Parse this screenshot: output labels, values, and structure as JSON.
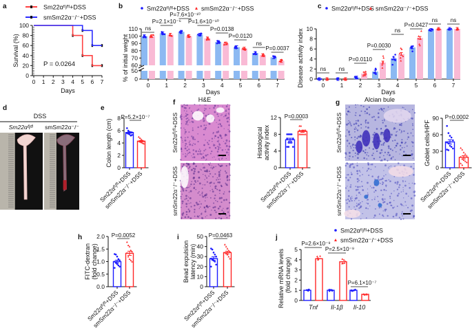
{
  "figure": {
    "panel_letters": [
      "a",
      "b",
      "c",
      "d",
      "e",
      "f",
      "g",
      "h",
      "i",
      "j"
    ],
    "d": {
      "title": "DSS",
      "labels": [
        "Sm22αᶠˡ/ᶠˡ",
        "smSm22α⁻/⁻"
      ]
    },
    "f": {
      "title": "H&E",
      "row_labels": [
        "Sm22αᶠˡ/ᶠˡ+DSS",
        "smSm22α⁻/⁻+DSS"
      ]
    },
    "g": {
      "title": "Alcian bule",
      "row_labels": [
        "Sm22αᶠˡ/ᶠˡ+DSS",
        "smSm22α⁻/⁻+DSS"
      ]
    }
  },
  "colors": {
    "blue": "#1c1cff",
    "red": "#ff2626",
    "light_blue": "#8cb9f2",
    "pink": "#f9bad5",
    "survival_red": "#ff4040",
    "survival_blue": "#2b2bff"
  },
  "chart_data": [
    {
      "panel": "a",
      "type": "line",
      "step": true,
      "xlabel": "Days",
      "ylabel": "Survival (%)",
      "xlim": [
        0,
        7
      ],
      "ylim": [
        0,
        100
      ],
      "xticks": [
        "0",
        "1",
        "2",
        "3",
        "4",
        "5",
        "6",
        "7"
      ],
      "yticks": [
        "0",
        "20",
        "40",
        "60",
        "80",
        "100"
      ],
      "legend": "top",
      "series": [
        {
          "name": "Sm22αᶠˡ/ᶠˡ+DSS",
          "color": "red",
          "x": [
            0,
            4,
            5,
            6,
            7
          ],
          "y": [
            100,
            80,
            40,
            20,
            20
          ]
        },
        {
          "name": "smSm22α⁻/⁻+DSS",
          "color": "blue",
          "x": [
            0,
            5,
            6,
            7
          ],
          "y": [
            100,
            90,
            60,
            60
          ]
        }
      ],
      "annotation": "P = 0.0264"
    },
    {
      "panel": "b",
      "type": "bar",
      "xlabel": "Days",
      "ylabel": "% of initial weight",
      "categories": [
        "0",
        "1",
        "2",
        "3",
        "4",
        "5",
        "6",
        "7"
      ],
      "yticks": [
        "0",
        "50",
        "60",
        "70",
        "80",
        "90",
        "100",
        "110"
      ],
      "ylim": [
        0,
        110
      ],
      "axis_break": [
        50,
        60
      ],
      "legend": "top",
      "series": [
        {
          "name": "Sm22αᶠˡ/ᶠˡ+DSS",
          "values": [
            100,
            104,
            106,
            102,
            92,
            85,
            77,
            71
          ]
        },
        {
          "name": "smSm22α⁻/⁻+DSS",
          "values": [
            100,
            102,
            100,
            97,
            90,
            83,
            74,
            66
          ]
        }
      ],
      "annotations": [
        "ns",
        "P=2.1×10⁻⁶",
        "P=7.6×10⁻¹⁰",
        "P=1.6×10⁻¹⁰",
        "P=0.0138",
        "P=0.0120",
        "ns",
        "P=0.0037"
      ]
    },
    {
      "panel": "c",
      "type": "bar",
      "xlabel": "Days",
      "ylabel": "Disease activity index",
      "categories": [
        "0",
        "1",
        "2",
        "3",
        "4",
        "5",
        "6",
        "7"
      ],
      "yticks": [
        "0",
        "2",
        "4",
        "6",
        "8",
        "10"
      ],
      "ylim": [
        0,
        10
      ],
      "legend": "top",
      "series": [
        {
          "name": "Sm22αᶠˡ/ᶠˡ+DSS",
          "values": [
            0,
            0,
            0.3,
            1.5,
            4.1,
            6.3,
            9.8,
            10
          ]
        },
        {
          "name": "smSm22α⁻/⁻+DSS",
          "values": [
            0,
            0,
            1.1,
            3.3,
            5.0,
            8.2,
            10,
            10
          ]
        }
      ],
      "annotations": [
        "ns",
        "ns",
        "P=0.0110",
        "P=0.0030",
        "ns",
        "P=0.0427",
        "ns",
        "ns"
      ]
    },
    {
      "panel": "e",
      "type": "bar",
      "ylabel": [
        "Colon length (cm)"
      ],
      "categories": [
        "Sm22αᶠˡ/ᶠˡ+DSS",
        "smSm22α⁻/⁻+DSS"
      ],
      "yticks": [
        "0",
        "2",
        "4",
        "6",
        "8"
      ],
      "ylim": [
        0,
        8
      ],
      "values": [
        5.7,
        4.3
      ],
      "points": [
        [
          6.4,
          6.0,
          5.8,
          5.7,
          5.7,
          5.6,
          5.5,
          5.4,
          5.2,
          5.3
        ],
        [
          5.0,
          4.8,
          4.6,
          4.4,
          4.3,
          4.3,
          4.2,
          4.1,
          4.0,
          3.9
        ]
      ],
      "annotation": "P=5.2×10⁻⁷"
    },
    {
      "panel": "f",
      "type": "bar",
      "ylabel": [
        "Histological",
        "activity index"
      ],
      "categories": [
        "Sm22αᶠˡ/ᶠˡ+DSS",
        "smSm22α⁻/⁻+DSS"
      ],
      "yticks": [
        "0",
        "4",
        "8",
        "12"
      ],
      "ylim": [
        0,
        12
      ],
      "values": [
        6.7,
        8.7
      ],
      "points": [
        [
          8,
          8,
          8,
          8,
          7,
          7,
          6,
          6,
          6,
          5,
          5,
          5
        ],
        [
          10,
          10,
          9,
          9,
          9,
          9,
          8,
          8,
          8,
          8,
          8,
          8
        ]
      ],
      "annotation": "P=0.0003"
    },
    {
      "panel": "g",
      "type": "bar",
      "ylabel": [
        "Goblet cells/HPF"
      ],
      "categories": [
        "Sm22αᶠˡ/ᶠˡ+DSS",
        "smSm22α⁻/⁻+DSS"
      ],
      "yticks": [
        "0",
        "30",
        "60",
        "90"
      ],
      "ylim": [
        0,
        90
      ],
      "values": [
        47,
        19
      ],
      "points": [
        [
          76,
          63,
          58,
          55,
          50,
          46,
          44,
          40,
          38,
          35,
          33,
          32
        ],
        [
          36,
          33,
          28,
          25,
          22,
          20,
          16,
          14,
          12,
          10,
          8,
          5
        ]
      ],
      "annotation": "P=0.0002"
    },
    {
      "panel": "h",
      "type": "bar",
      "ylabel": [
        "FITC-dextran",
        "(fold change)"
      ],
      "categories": [
        "Sm22αᶠˡ/ᶠˡ+DSS",
        "smSm22α⁻/⁻+DSS"
      ],
      "yticks": [
        "0.0",
        "0.5",
        "1.0",
        "1.5",
        "2.0"
      ],
      "ylim": [
        0,
        2
      ],
      "values": [
        1.0,
        1.33
      ],
      "points": [
        [
          1.3,
          1.28,
          1.2,
          1.1,
          1.05,
          1.0,
          0.95,
          0.9,
          0.85,
          0.8,
          0.75
        ],
        [
          1.78,
          1.65,
          1.6,
          1.45,
          1.4,
          1.35,
          1.2,
          1.1,
          1.05,
          1.0
        ]
      ],
      "annotation": "P=0.0052"
    },
    {
      "panel": "i",
      "type": "bar",
      "ylabel": [
        "Bead expulsion",
        "latency (min)"
      ],
      "categories": [
        "Sm22αᶠˡ/ᶠˡ+DSS",
        "smSm22α⁻/⁻+DSS"
      ],
      "yticks": [
        "0",
        "10",
        "20",
        "30",
        "40",
        "50"
      ],
      "ylim": [
        0,
        50
      ],
      "values": [
        28,
        34
      ],
      "points": [
        [
          38,
          37,
          34,
          32,
          30,
          28,
          27,
          26,
          25,
          22,
          20
        ],
        [
          42,
          40,
          38,
          36,
          35,
          34,
          33,
          32,
          30,
          28
        ]
      ],
      "annotation": "P=0.0463"
    },
    {
      "panel": "j",
      "type": "bar",
      "ylabel": [
        "Relative mRNA levels",
        "(fold change)"
      ],
      "categories": [
        "Tnf",
        "Il-1β",
        "Il-10"
      ],
      "yticks": [
        "0",
        "1",
        "2",
        "3",
        "4",
        "5"
      ],
      "ylim": [
        0,
        5
      ],
      "legend": "top",
      "series": [
        {
          "name": "Sm22αᶠˡ/ᶠˡ+DSS",
          "values": [
            1.0,
            1.0,
            1.0
          ]
        },
        {
          "name": "smSm22α⁻/⁻+DSS",
          "values": [
            4.1,
            3.8,
            0.6
          ]
        }
      ],
      "annotations": [
        "P=2.6×10⁻⁹",
        "P=2.5×10⁻⁹",
        "P=6.1×10⁻⁷"
      ]
    }
  ]
}
